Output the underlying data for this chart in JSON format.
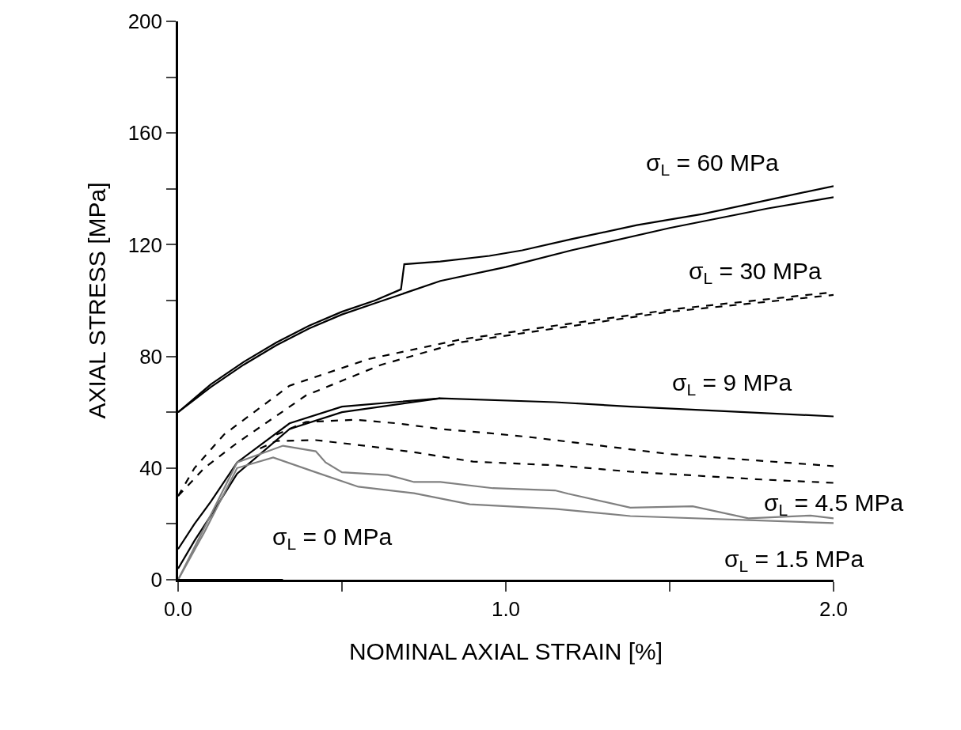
{
  "chart_data": {
    "type": "line",
    "xlabel": "NOMINAL AXIAL STRAIN [%]",
    "ylabel": "AXIAL STRESS [MPa]",
    "xlim": [
      0,
      2
    ],
    "xticks": [
      {
        "value": 0,
        "label": "0.0"
      },
      {
        "value": 0.5,
        "label": null
      },
      {
        "value": 1,
        "label": "1.0"
      },
      {
        "value": 1.5,
        "label": null
      },
      {
        "value": 2,
        "label": "2.0"
      }
    ],
    "ylim": [
      0,
      200
    ],
    "yticks": [
      0,
      {
        "value": 20,
        "label": null
      },
      40,
      {
        "value": 60,
        "label": null
      },
      80,
      {
        "value": 100,
        "label": null
      },
      120,
      {
        "value": 140,
        "label": null
      },
      160,
      {
        "value": 180,
        "label": null
      },
      200
    ],
    "marker": "none",
    "series": [
      {
        "color": "#000000",
        "line_style": "solid",
        "x": [
          0,
          0.1,
          0.2,
          0.3,
          0.4,
          0.5,
          0.6,
          0.68,
          0.69,
          0.8,
          0.95,
          1.05,
          1.2,
          1.4,
          1.6,
          1.8,
          2.0
        ],
        "values": [
          60,
          70,
          78,
          85,
          91,
          96,
          100,
          104,
          113,
          114,
          116,
          118,
          122,
          127,
          131,
          136,
          141
        ]
      },
      {
        "color": "#000000",
        "line_style": "solid",
        "x": [
          0,
          0.1,
          0.2,
          0.3,
          0.4,
          0.5,
          0.6,
          0.7,
          0.8,
          1.0,
          1.2,
          1.5,
          1.8,
          2.0
        ],
        "values": [
          60,
          69,
          77,
          84,
          90,
          95,
          99,
          103,
          107,
          112,
          118,
          126,
          133,
          137
        ]
      },
      {
        "color": "#000000",
        "line_style": "dashed",
        "x": [
          0,
          0.05,
          0.14,
          0.34,
          0.58,
          0.86,
          1.15,
          1.52,
          2.0
        ],
        "values": [
          30,
          40,
          52,
          69.5,
          79,
          86,
          91,
          97,
          103
        ]
      },
      {
        "color": "#000000",
        "line_style": "dashed",
        "x": [
          0,
          0.08,
          0.18,
          0.39,
          0.62,
          0.86,
          1.15,
          1.5,
          2.0
        ],
        "values": [
          30,
          40,
          49,
          66,
          77,
          85,
          90,
          96,
          102
        ]
      },
      {
        "color": "#000000",
        "line_style": "solid",
        "x": [
          0,
          0.05,
          0.1,
          0.18,
          0.34,
          0.5,
          0.8,
          1.15,
          1.38,
          2.0
        ],
        "values": [
          11,
          20,
          28,
          42,
          56,
          62,
          65,
          63.6,
          62,
          58.5
        ]
      },
      {
        "color": "#000000",
        "line_style": "solid",
        "x": [
          0,
          0.05,
          0.1,
          0.18,
          0.34,
          0.5,
          0.8
        ],
        "values": [
          4,
          14,
          23,
          38,
          54,
          60,
          65
        ]
      },
      {
        "color": "#000000",
        "line_style": "dashed",
        "x": [
          0.3,
          0.39,
          0.54,
          0.67,
          0.8,
          0.95,
          1.08,
          1.5,
          2.0
        ],
        "values": [
          52,
          56.5,
          57.3,
          56,
          54,
          52.5,
          51,
          45,
          40.7
        ]
      },
      {
        "color": "#000000",
        "line_style": "dashed",
        "x": [
          0.25,
          0.3,
          0.42,
          0.57,
          0.73,
          0.9,
          1.15,
          1.38,
          1.78,
          2.0
        ],
        "values": [
          47,
          49.7,
          50,
          48,
          45.5,
          42.3,
          41,
          38.7,
          35.9,
          34.7
        ]
      },
      {
        "color": "#808080",
        "line_style": "solid",
        "x": [
          0,
          0.08,
          0.18,
          0.32,
          0.42,
          0.45,
          0.5,
          0.64,
          0.72,
          0.8,
          0.96,
          1.15,
          1.19,
          1.38,
          1.57,
          1.74,
          1.93,
          2.0
        ],
        "values": [
          0,
          18.6,
          42,
          48,
          46,
          42,
          38.5,
          37.5,
          35,
          35,
          32.8,
          32,
          30.8,
          25.8,
          26.3,
          22,
          23,
          22
        ]
      },
      {
        "color": "#808080",
        "line_style": "solid",
        "x": [
          0,
          0.08,
          0.18,
          0.29,
          0.42,
          0.55,
          0.72,
          0.89,
          1.15,
          1.38,
          2.0
        ],
        "values": [
          0,
          17,
          40,
          43.8,
          38.5,
          33.3,
          31,
          27,
          25.4,
          22.8,
          20.3
        ]
      },
      {
        "color": "#000000",
        "line_style": "solid",
        "x": [
          0,
          0.32
        ],
        "values": [
          0,
          0
        ]
      }
    ],
    "annotations": [
      "σ$_{L}$ = 60 MPa",
      "σ$_{L}$ = 30 MPa",
      "σ$_{L}$ = 9 MPa",
      "σ$_{L}$ = 4.5 MPa",
      "σ$_{L}$ = 1.5 MPa",
      "σ$_{L}$ = 0 MPa"
    ]
  }
}
